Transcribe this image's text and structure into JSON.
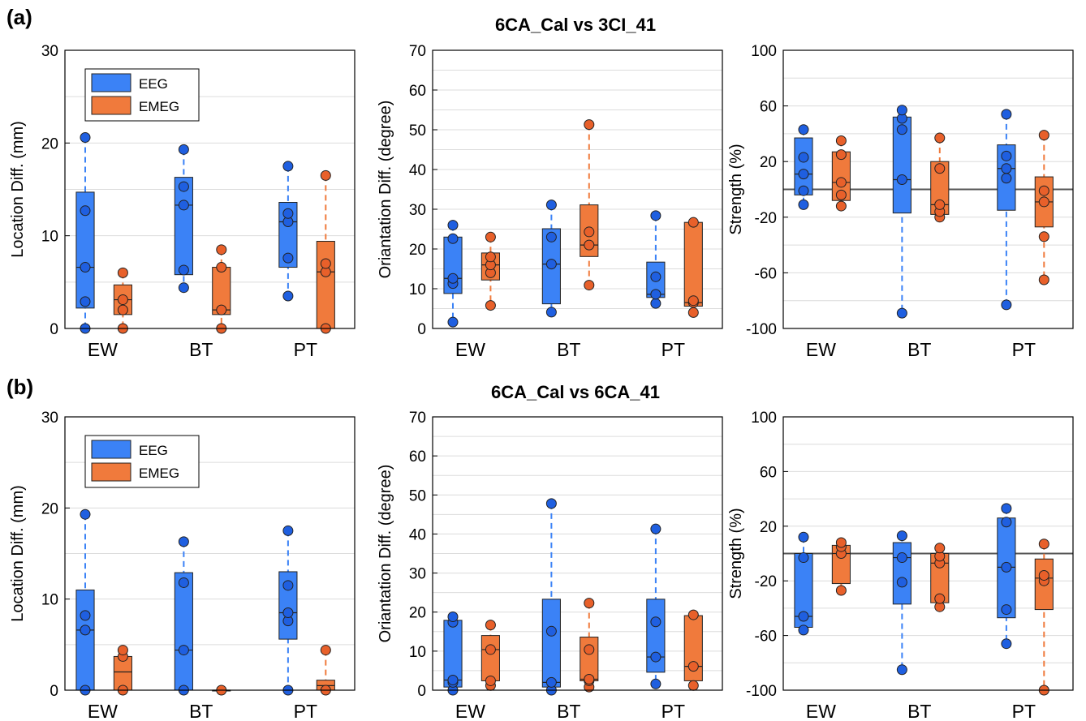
{
  "figure": {
    "row_labels": [
      "(a)",
      "(b)"
    ],
    "row_titles": [
      "6CA_Cal vs 3CI_41",
      "6CA_Cal vs 6CA_41"
    ],
    "legend": [
      "EEG",
      "EMEG"
    ],
    "colors": {
      "EEG": "#3b82f6",
      "EMEG": "#f07a3c",
      "EEG_dot": "#1f5fe0",
      "EMEG_dot": "#e8602a"
    }
  },
  "chart_data": [
    {
      "type": "box",
      "title": "",
      "ylabel": "Location Diff. (mm)",
      "ylim": [
        0,
        30
      ],
      "yticks": [
        0,
        10,
        20,
        30
      ],
      "categories": [
        "EW",
        "BT",
        "PT"
      ],
      "legend": "top-left",
      "series": [
        {
          "name": "EEG",
          "boxes": [
            {
              "q1": 2.2,
              "q3": 14.7,
              "median": 6.6,
              "wlo": 0,
              "whi": 20.6,
              "points": [
                0,
                2.9,
                6.6,
                12.7,
                20.6
              ]
            },
            {
              "q1": 5.8,
              "q3": 16.3,
              "median": 13.3,
              "wlo": 4.4,
              "whi": 19.3,
              "points": [
                4.4,
                6.3,
                13.3,
                15.3,
                19.3
              ]
            },
            {
              "q1": 6.6,
              "q3": 13.6,
              "median": 11.5,
              "wlo": 3.5,
              "whi": 17.5,
              "points": [
                3.5,
                7.6,
                11.5,
                12.4,
                17.5
              ]
            }
          ]
        },
        {
          "name": "EMEG",
          "boxes": [
            {
              "q1": 1.5,
              "q3": 4.7,
              "median": 3.1,
              "wlo": 0,
              "whi": 6.0,
              "points": [
                0,
                2.0,
                3.1,
                6.0
              ]
            },
            {
              "q1": 1.5,
              "q3": 6.6,
              "median": 2.0,
              "wlo": 0,
              "whi": 8.5,
              "points": [
                0,
                2.0,
                6.6,
                8.5
              ]
            },
            {
              "q1": 0,
              "q3": 9.4,
              "median": 6.1,
              "wlo": 0,
              "whi": 16.5,
              "points": [
                0,
                6.1,
                7.0,
                16.5
              ]
            }
          ]
        }
      ]
    },
    {
      "type": "box",
      "title": "",
      "ylabel": "Oriantation Diff. (degree)",
      "ylim": [
        0,
        70
      ],
      "yticks": [
        0,
        10,
        20,
        30,
        40,
        50,
        60,
        70
      ],
      "categories": [
        "EW",
        "BT",
        "PT"
      ],
      "series": [
        {
          "name": "EEG",
          "boxes": [
            {
              "q1": 8.8,
              "q3": 23,
              "median": 12.6,
              "wlo": 1.6,
              "whi": 26,
              "points": [
                1.6,
                11.3,
                12.6,
                22.6,
                26
              ]
            },
            {
              "q1": 6.2,
              "q3": 25.1,
              "median": 16.2,
              "wlo": 4.1,
              "whi": 31.1,
              "points": [
                4.1,
                16.2,
                23.0,
                31.1
              ]
            },
            {
              "q1": 7.8,
              "q3": 16.7,
              "median": 8.6,
              "wlo": 6.3,
              "whi": 28.4,
              "points": [
                6.3,
                8.6,
                13.0,
                28.4
              ]
            }
          ]
        },
        {
          "name": "EMEG",
          "boxes": [
            {
              "q1": 12.2,
              "q3": 19,
              "median": 16.0,
              "wlo": 5.8,
              "whi": 23,
              "points": [
                5.8,
                14.0,
                16.0,
                18.0,
                23
              ]
            },
            {
              "q1": 18.1,
              "q3": 31.1,
              "median": 21.0,
              "wlo": 10.9,
              "whi": 51.3,
              "points": [
                10.9,
                21.0,
                24.3,
                51.3
              ]
            },
            {
              "q1": 5.6,
              "q3": 26.7,
              "median": 6.5,
              "wlo": 4.0,
              "whi": 27,
              "points": [
                4.0,
                6.5,
                7.0,
                26.7
              ]
            }
          ]
        }
      ]
    },
    {
      "type": "box",
      "title": "",
      "ylabel": "Strength (%)",
      "ylim": [
        -100,
        100
      ],
      "yticks": [
        -100,
        -60,
        -20,
        20,
        60,
        100
      ],
      "categories": [
        "EW",
        "BT",
        "PT"
      ],
      "ref_line": 0,
      "series": [
        {
          "name": "EEG",
          "boxes": [
            {
              "q1": -4,
              "q3": 37,
              "median": 11,
              "wlo": -11,
              "whi": 43,
              "points": [
                -11,
                -1,
                11,
                23,
                43
              ]
            },
            {
              "q1": -17,
              "q3": 52,
              "median": 7,
              "wlo": -89,
              "whi": 57,
              "points": [
                -89,
                7,
                43,
                51,
                57
              ]
            },
            {
              "q1": -15,
              "q3": 32,
              "median": 15,
              "wlo": -83,
              "whi": 54,
              "points": [
                -83,
                8,
                15,
                24,
                54
              ]
            }
          ]
        },
        {
          "name": "EMEG",
          "boxes": [
            {
              "q1": -8,
              "q3": 27,
              "median": 5,
              "wlo": -12,
              "whi": 35,
              "points": [
                -12,
                -4,
                5,
                25,
                35
              ]
            },
            {
              "q1": -18,
              "q3": 20,
              "median": -11,
              "wlo": -20,
              "whi": 37,
              "points": [
                -20,
                -16,
                -11,
                15,
                37
              ]
            },
            {
              "q1": -27,
              "q3": 9,
              "median": -9,
              "wlo": -65,
              "whi": 39,
              "points": [
                -65,
                -34,
                -9,
                -1,
                39
              ]
            }
          ]
        }
      ]
    },
    {
      "type": "box",
      "title": "",
      "ylabel": "Location Diff. (mm)",
      "ylim": [
        0,
        30
      ],
      "yticks": [
        0,
        10,
        20,
        30
      ],
      "categories": [
        "EW",
        "BT",
        "PT"
      ],
      "legend": "top-left",
      "series": [
        {
          "name": "EEG",
          "boxes": [
            {
              "q1": 0,
              "q3": 11,
              "median": 6.6,
              "wlo": 0,
              "whi": 19.3,
              "points": [
                0,
                6.6,
                8.2,
                19.3
              ]
            },
            {
              "q1": 0,
              "q3": 12.9,
              "median": 4.4,
              "wlo": 0,
              "whi": 16.3,
              "points": [
                0,
                4.4,
                11.8,
                16.3
              ]
            },
            {
              "q1": 5.6,
              "q3": 13.0,
              "median": 8.5,
              "wlo": 0,
              "whi": 17.5,
              "points": [
                0,
                7.6,
                8.5,
                11.5,
                17.5
              ]
            }
          ]
        },
        {
          "name": "EMEG",
          "boxes": [
            {
              "q1": 0,
              "q3": 3.7,
              "median": 2.0,
              "wlo": 0,
              "whi": 4.4,
              "points": [
                0,
                3.7,
                4.4
              ]
            },
            {
              "q1": 0,
              "q3": 0,
              "median": 0,
              "wlo": 0,
              "whi": 0,
              "points": [
                0
              ]
            },
            {
              "q1": 0,
              "q3": 1.1,
              "median": 0.5,
              "wlo": 0,
              "whi": 4.4,
              "points": [
                0,
                4.4
              ]
            }
          ]
        }
      ]
    },
    {
      "type": "box",
      "title": "",
      "ylabel": "Oriantation Diff. (degree)",
      "ylim": [
        0,
        70
      ],
      "yticks": [
        0,
        10,
        20,
        30,
        40,
        50,
        60,
        70
      ],
      "categories": [
        "EW",
        "BT",
        "PT"
      ],
      "series": [
        {
          "name": "EEG",
          "boxes": [
            {
              "q1": 0.8,
              "q3": 17.9,
              "median": 2.6,
              "wlo": 0,
              "whi": 18.8,
              "points": [
                0,
                2.0,
                2.6,
                17.4,
                18.8
              ]
            },
            {
              "q1": 0.8,
              "q3": 23.3,
              "median": 2.0,
              "wlo": 0,
              "whi": 47.8,
              "points": [
                0,
                2.0,
                15.1,
                47.8
              ]
            },
            {
              "q1": 4.6,
              "q3": 23.3,
              "median": 8.5,
              "wlo": 1.6,
              "whi": 41.3,
              "points": [
                1.6,
                8.5,
                17.5,
                41.3
              ]
            }
          ]
        },
        {
          "name": "EMEG",
          "boxes": [
            {
              "q1": 2.4,
              "q3": 14.0,
              "median": 10.4,
              "wlo": 1.2,
              "whi": 16.7,
              "points": [
                1.2,
                2.4,
                10.4,
                16.7
              ]
            },
            {
              "q1": 2.4,
              "q3": 13.6,
              "median": 2.8,
              "wlo": 0.8,
              "whi": 22.3,
              "points": [
                0.8,
                2.4,
                2.8,
                10.4,
                22.3
              ]
            },
            {
              "q1": 2.4,
              "q3": 19.1,
              "median": 6.1,
              "wlo": 1.2,
              "whi": 19.3,
              "points": [
                1.2,
                6.1,
                19.3
              ]
            }
          ]
        }
      ]
    },
    {
      "type": "box",
      "title": "",
      "ylabel": "Strength (%)",
      "ylim": [
        -100,
        100
      ],
      "yticks": [
        -100,
        -60,
        -20,
        20,
        60,
        100
      ],
      "categories": [
        "EW",
        "BT",
        "PT"
      ],
      "ref_line": 0,
      "series": [
        {
          "name": "EEG",
          "boxes": [
            {
              "q1": -54,
              "q3": 0,
              "median": -46,
              "wlo": -56,
              "whi": 12,
              "points": [
                -56,
                -46,
                -3,
                12
              ]
            },
            {
              "q1": -37,
              "q3": 8,
              "median": -3,
              "wlo": -85,
              "whi": 13,
              "points": [
                -85,
                -21,
                -3,
                13
              ]
            },
            {
              "q1": -47,
              "q3": 26,
              "median": -10,
              "wlo": -66,
              "whi": 33,
              "points": [
                -66,
                -41,
                -10,
                23,
                33
              ]
            }
          ]
        },
        {
          "name": "EMEG",
          "boxes": [
            {
              "q1": -22,
              "q3": 6,
              "median": 0,
              "wlo": -27,
              "whi": 8,
              "points": [
                -27,
                0,
                5,
                8
              ]
            },
            {
              "q1": -36,
              "q3": 0,
              "median": -7,
              "wlo": -39,
              "whi": 4,
              "points": [
                -39,
                -33,
                -7,
                -2,
                4
              ]
            },
            {
              "q1": -41,
              "q3": -4,
              "median": -18,
              "wlo": -100,
              "whi": 7,
              "points": [
                -100,
                -20,
                -16,
                7
              ]
            }
          ]
        }
      ]
    }
  ]
}
